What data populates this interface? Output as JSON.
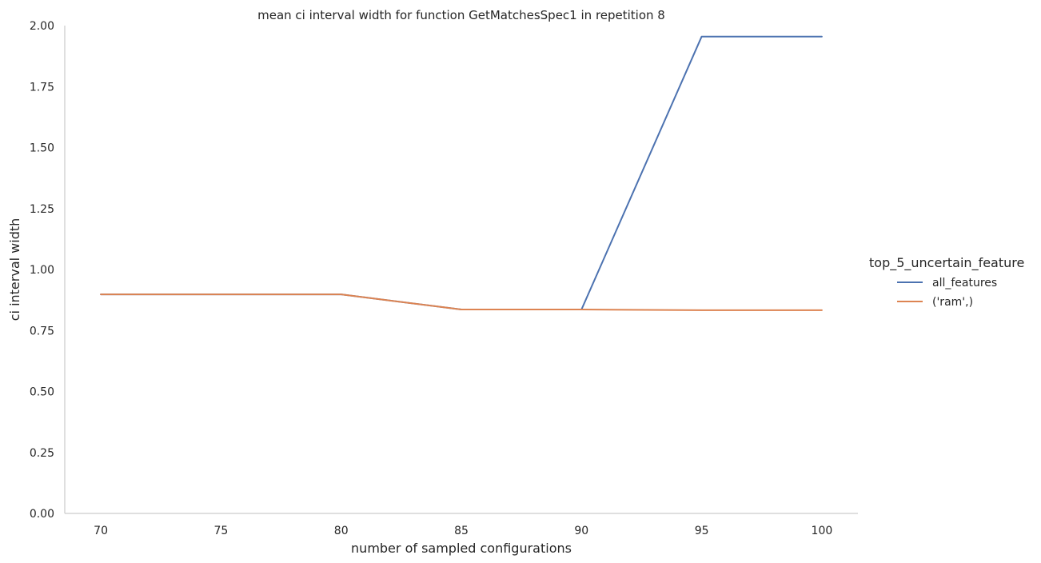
{
  "chart_data": {
    "type": "line",
    "title": "mean ci interval width for function GetMatchesSpec1 in repetition 8",
    "xlabel": "number of sampled configurations",
    "ylabel": "ci interval width",
    "x": [
      70,
      75,
      80,
      85,
      90,
      95,
      100
    ],
    "xticks": [
      70,
      75,
      80,
      85,
      90,
      95,
      100
    ],
    "yticks": [
      0.0,
      0.25,
      0.5,
      0.75,
      1.0,
      1.25,
      1.5,
      1.75,
      2.0
    ],
    "ytick_labels": [
      "0.00",
      "0.25",
      "0.50",
      "0.75",
      "1.00",
      "1.25",
      "1.50",
      "1.75",
      "2.00"
    ],
    "xlim": [
      68.5,
      101.5
    ],
    "ylim": [
      0,
      2.0
    ],
    "grid": false,
    "legend_title": "top_5_uncertain_feature",
    "legend_position": "right",
    "series": [
      {
        "name": "all_features",
        "color": "#4c72b0",
        "values": [
          0.898,
          0.898,
          0.898,
          0.836,
          0.836,
          1.955,
          1.955
        ]
      },
      {
        "name": "('ram',)",
        "color": "#dd8452",
        "values": [
          0.898,
          0.898,
          0.898,
          0.836,
          0.836,
          0.833,
          0.833
        ]
      }
    ]
  }
}
